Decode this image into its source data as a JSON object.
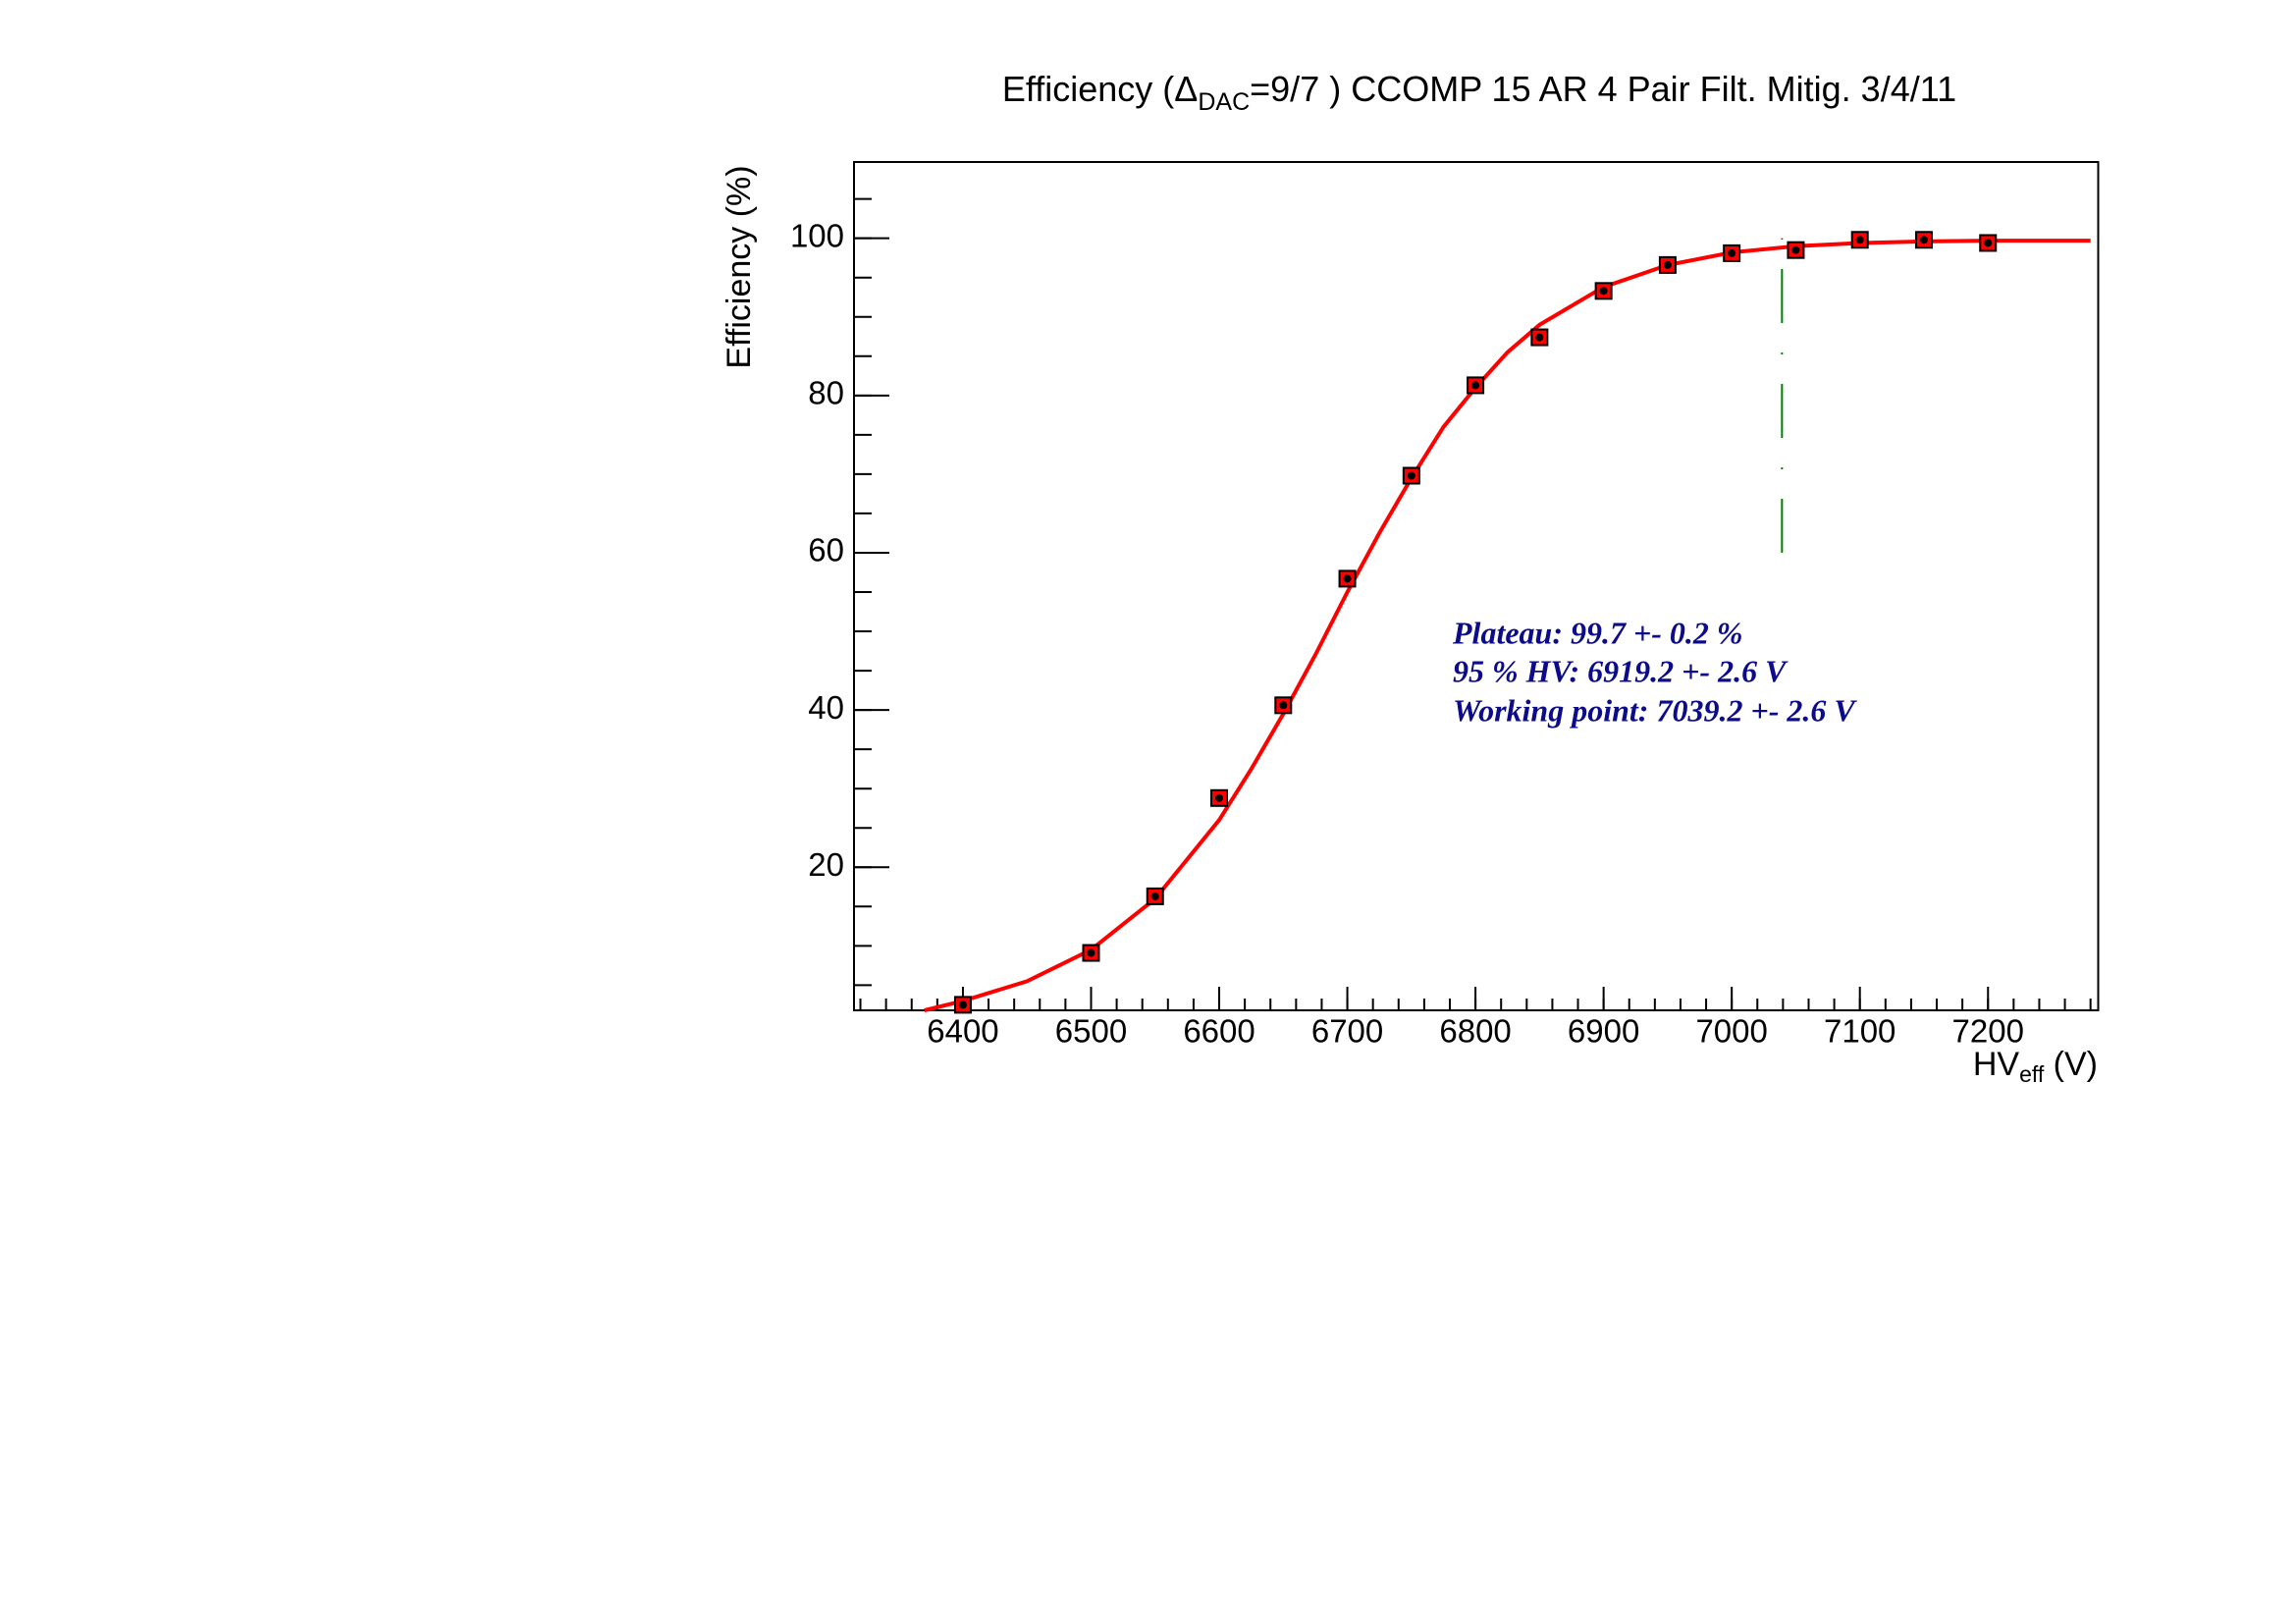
{
  "chart_data": {
    "type": "scatter",
    "title": [
      "Efficiency (Δ",
      "DAC",
      "=9/7 ) CCOMP 15 AR 4 Pair Filt. Mitig. 3/4/11"
    ],
    "x_label": [
      "HV",
      "eff",
      " (V)"
    ],
    "y_label": "Efficiency (%)",
    "xlim": [
      6315,
      7286
    ],
    "ylim": [
      1.8,
      109.7
    ],
    "xticks": [
      6400,
      6500,
      6600,
      6700,
      6800,
      6900,
      7000,
      7100,
      7200
    ],
    "yticks": [
      20,
      40,
      60,
      80,
      100
    ],
    "points": {
      "color": "#ff0000",
      "x": [
        6400,
        6500,
        6550,
        6600,
        6650,
        6700,
        6750,
        6800,
        6850,
        6900,
        6950,
        7000,
        7050,
        7100,
        7150,
        7200
      ],
      "values": [
        2.5,
        9.1,
        16.3,
        28.8,
        40.6,
        56.7,
        69.8,
        81.3,
        87.4,
        93.3,
        96.6,
        98.1,
        98.5,
        99.8,
        99.8,
        99.4
      ]
    },
    "fit": {
      "color": "#ff0000",
      "x": [
        6370,
        6400,
        6450,
        6500,
        6550,
        6600,
        6625,
        6650,
        6675,
        6700,
        6725,
        6750,
        6775,
        6800,
        6825,
        6850,
        6900,
        6950,
        7000,
        7050,
        7100,
        7150,
        7200,
        7280
      ],
      "values": [
        1.8,
        3,
        5.5,
        9.5,
        16,
        26,
        32.5,
        39.5,
        47,
        55,
        62.5,
        69.5,
        76,
        81,
        85.5,
        89,
        93.8,
        96.6,
        98.2,
        99,
        99.4,
        99.6,
        99.7,
        99.7
      ]
    },
    "working_point_line": {
      "color": "#008000",
      "x": 7039.2,
      "y": [
        60,
        100
      ]
    },
    "annotations": [
      "Plateau: 99.7 +- 0.2 %",
      "95 % HV: 6919.2 +- 2.6 V",
      "Working point: 7039.2 +- 2.6 V"
    ]
  }
}
